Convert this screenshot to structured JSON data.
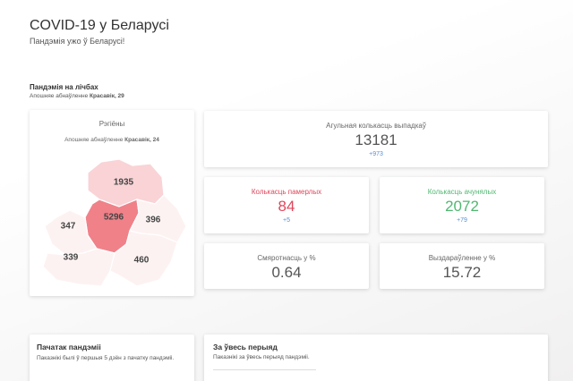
{
  "header": {
    "title": "COVID-19 у Беларусі",
    "subtitle": "Пандэмія ужо ў Беларусі!"
  },
  "summary": {
    "title": "Пандэмія на лічбах",
    "updated_label": "Апошняе абнаўленне",
    "updated_date": "Красавік, 29"
  },
  "map": {
    "title": "Рэгіёны",
    "updated_label": "Апошняе абнаўленне",
    "updated_date": "Красавік, 24",
    "regions": [
      1935,
      5296,
      396,
      347,
      339,
      460
    ]
  },
  "stats": [
    {
      "label": "Агульная колькасць выпадкаў",
      "value": 13181,
      "change": "+973"
    },
    {
      "label": "Колькасць памерлых",
      "value": 84,
      "change": "+5"
    },
    {
      "label": "Колькасць ачунялых",
      "value": 2072,
      "change": "+79"
    },
    {
      "label": "Смяротнасць у %",
      "value": 0.64
    },
    {
      "label": "Выздараўленне у %",
      "value": 15.72
    }
  ],
  "cards": [
    {
      "title": "Пачатак пандэміі",
      "text": "Паказнікі былі ў першыя 5 дзён з пачатку пандэміі."
    },
    {
      "title": "За ўвесь перыяд",
      "text": "Паказнікі за ўвесь перыяд пандэміі."
    }
  ]
}
